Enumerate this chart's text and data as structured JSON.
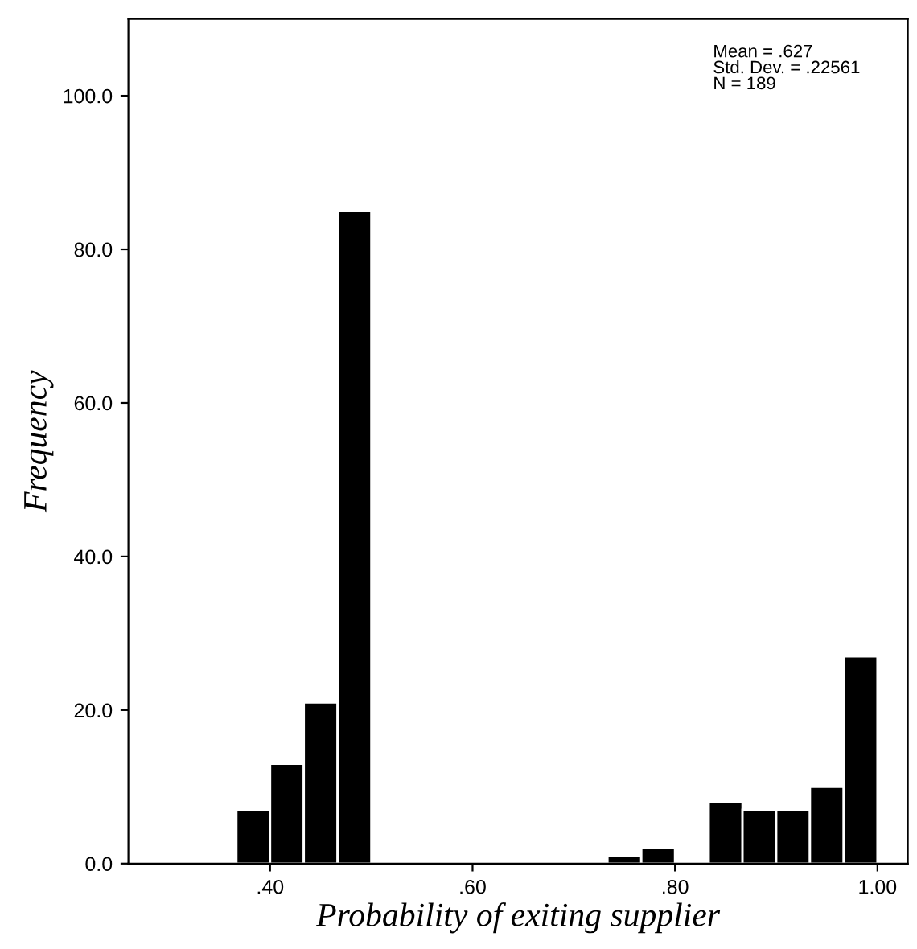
{
  "chart_data": {
    "type": "histogram",
    "xlabel": "Probability of exiting supplier",
    "ylabel": "Frequency",
    "bins": [
      0.3667,
      0.4,
      0.4333,
      0.4667,
      0.5,
      0.5333,
      0.5667,
      0.6,
      0.6333,
      0.6667,
      0.7,
      0.7333,
      0.7667,
      0.8,
      0.8333,
      0.8667,
      0.9,
      0.9333,
      0.9667,
      1.0
    ],
    "values": [
      7,
      13,
      21,
      85,
      0,
      0,
      0,
      0,
      0,
      0,
      0,
      1,
      2,
      0,
      8,
      7,
      7,
      10,
      27
    ],
    "color": "#000000",
    "xlim": [
      0.26,
      1.03
    ],
    "ylim": [
      0,
      110
    ],
    "xticks": [
      {
        "value": 0.4,
        "label": ".40"
      },
      {
        "value": 0.6,
        "label": ".60"
      },
      {
        "value": 0.8,
        "label": ".80"
      },
      {
        "value": 1.0,
        "label": "1.00"
      }
    ],
    "yticks": [
      {
        "value": 0,
        "label": "0.0"
      },
      {
        "value": 20,
        "label": "20.0"
      },
      {
        "value": 40,
        "label": "40.0"
      },
      {
        "value": 60,
        "label": "60.0"
      },
      {
        "value": 80,
        "label": "80.0"
      },
      {
        "value": 100,
        "label": "100.0"
      }
    ],
    "grid": false,
    "annotations": [
      "Mean = .627\nStd. Dev. = .22561\nN = 189"
    ]
  }
}
